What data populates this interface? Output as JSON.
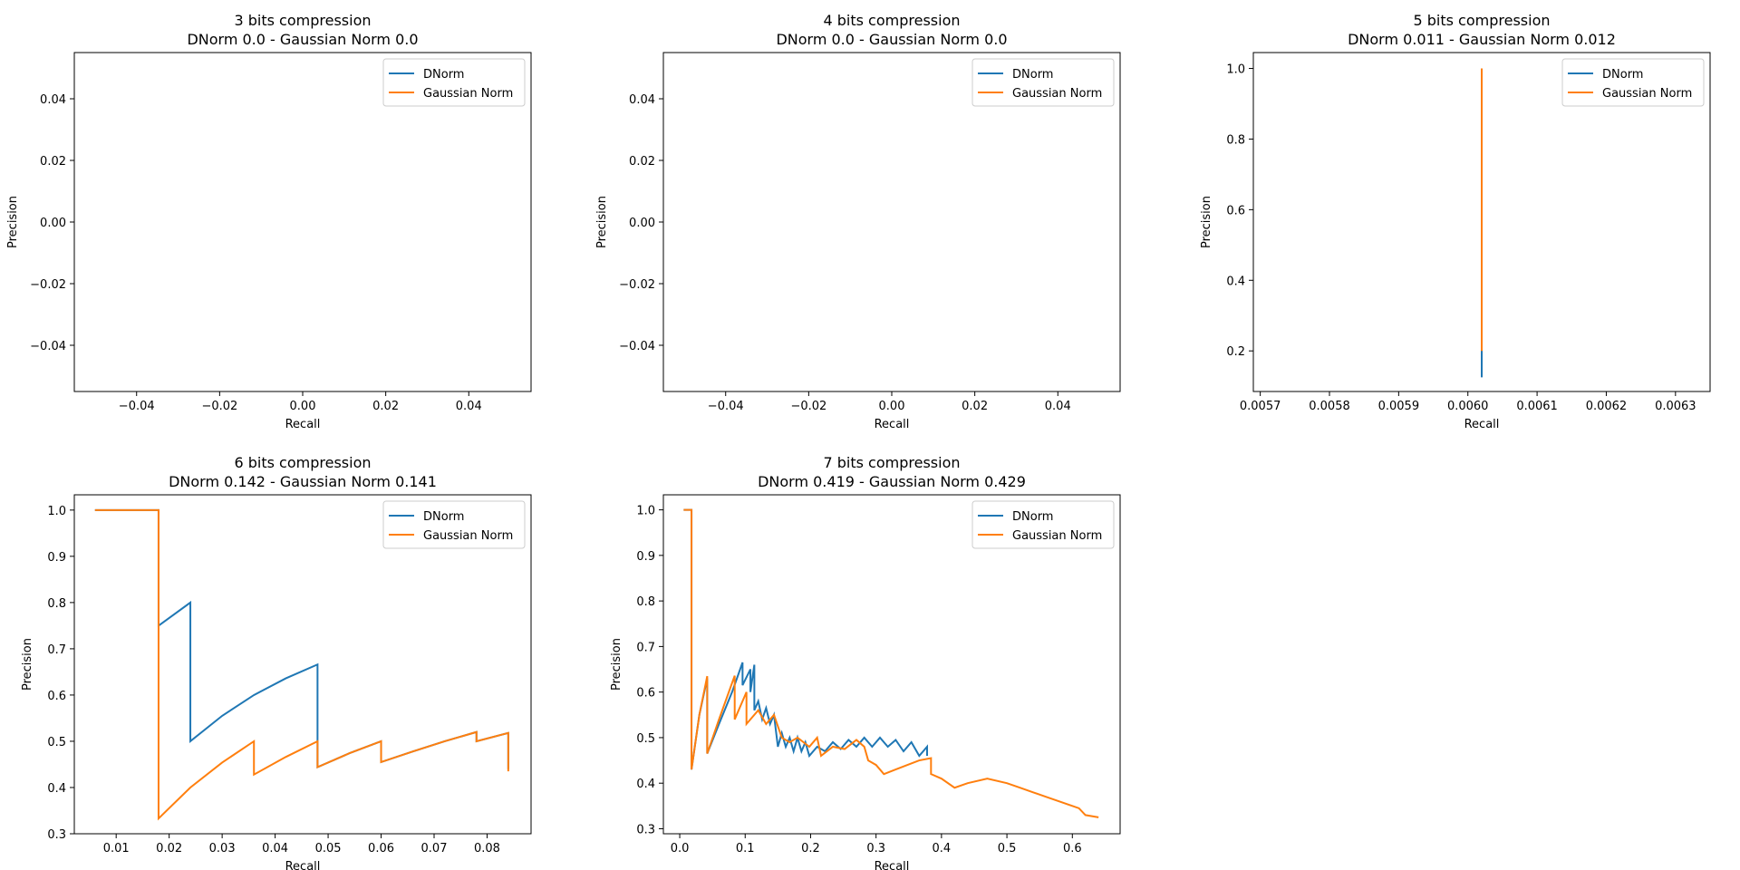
{
  "chart_data": [
    {
      "type": "line",
      "title": "3 bits compression",
      "subtitle": "DNorm 0.0 - Gaussian Norm 0.0",
      "xlabel": "Recall",
      "ylabel": "Precision",
      "xlim": [
        -0.055,
        0.055
      ],
      "ylim": [
        -0.055,
        0.055
      ],
      "xticks": [
        -0.04,
        -0.02,
        0.0,
        0.02,
        0.04
      ],
      "xtick_labels": [
        "−0.04",
        "−0.02",
        "0.00",
        "0.02",
        "0.04"
      ],
      "yticks": [
        -0.04,
        -0.02,
        0.0,
        0.02,
        0.04
      ],
      "ytick_labels": [
        "−0.04",
        "−0.02",
        "0.00",
        "0.02",
        "0.04"
      ],
      "legend": "top-right",
      "series": [
        {
          "name": "DNorm",
          "color": "#1f77b4",
          "points": []
        },
        {
          "name": "Gaussian Norm",
          "color": "#ff7f0e",
          "points": []
        }
      ]
    },
    {
      "type": "line",
      "title": "4 bits compression",
      "subtitle": "DNorm 0.0 - Gaussian Norm 0.0",
      "xlabel": "Recall",
      "ylabel": "Precision",
      "xlim": [
        -0.055,
        0.055
      ],
      "ylim": [
        -0.055,
        0.055
      ],
      "xticks": [
        -0.04,
        -0.02,
        0.0,
        0.02,
        0.04
      ],
      "xtick_labels": [
        "−0.04",
        "−0.02",
        "0.00",
        "0.02",
        "0.04"
      ],
      "yticks": [
        -0.04,
        -0.02,
        0.0,
        0.02,
        0.04
      ],
      "ytick_labels": [
        "−0.04",
        "−0.02",
        "0.00",
        "0.02",
        "0.04"
      ],
      "legend": "top-right",
      "series": [
        {
          "name": "DNorm",
          "color": "#1f77b4",
          "points": []
        },
        {
          "name": "Gaussian Norm",
          "color": "#ff7f0e",
          "points": []
        }
      ]
    },
    {
      "type": "line",
      "title": "5 bits compression",
      "subtitle": "DNorm 0.011 - Gaussian Norm 0.012",
      "xlabel": "Recall",
      "ylabel": "Precision",
      "xlim": [
        0.00569,
        0.00635
      ],
      "ylim": [
        0.085,
        1.045
      ],
      "xticks": [
        0.0057,
        0.0058,
        0.0059,
        0.006,
        0.0061,
        0.0062,
        0.0063
      ],
      "xtick_labels": [
        "0.0057",
        "0.0058",
        "0.0059",
        "0.0060",
        "0.0061",
        "0.0062",
        "0.0063"
      ],
      "yticks": [
        0.2,
        0.4,
        0.6,
        0.8,
        1.0
      ],
      "ytick_labels": [
        "0.2",
        "0.4",
        "0.6",
        "0.8",
        "1.0"
      ],
      "legend": "top-right",
      "series": [
        {
          "name": "DNorm",
          "color": "#1f77b4",
          "points": [
            [
              0.00602,
              1.0
            ],
            [
              0.00602,
              0.125
            ]
          ]
        },
        {
          "name": "Gaussian Norm",
          "color": "#ff7f0e",
          "points": [
            [
              0.00602,
              1.0
            ],
            [
              0.00602,
              0.2
            ]
          ]
        }
      ]
    },
    {
      "type": "line",
      "title": "6 bits compression",
      "subtitle": "DNorm 0.142 - Gaussian Norm 0.141",
      "xlabel": "Recall",
      "ylabel": "Precision",
      "xlim": [
        0.0021,
        0.0883
      ],
      "ylim": [
        0.3,
        1.033
      ],
      "xticks": [
        0.01,
        0.02,
        0.03,
        0.04,
        0.05,
        0.06,
        0.07,
        0.08
      ],
      "xtick_labels": [
        "0.01",
        "0.02",
        "0.03",
        "0.04",
        "0.05",
        "0.06",
        "0.07",
        "0.08"
      ],
      "yticks": [
        0.3,
        0.4,
        0.5,
        0.6,
        0.7,
        0.8,
        0.9,
        1.0
      ],
      "ytick_labels": [
        "0.3",
        "0.4",
        "0.5",
        "0.6",
        "0.7",
        "0.8",
        "0.9",
        "1.0"
      ],
      "legend": "top-right",
      "series": [
        {
          "name": "DNorm",
          "color": "#1f77b4",
          "points": [
            [
              0.006,
              1.0
            ],
            [
              0.012,
              1.0
            ],
            [
              0.018,
              1.0
            ],
            [
              0.018,
              0.75
            ],
            [
              0.024,
              0.8
            ],
            [
              0.024,
              0.5
            ],
            [
              0.03,
              0.555
            ],
            [
              0.036,
              0.6
            ],
            [
              0.042,
              0.636
            ],
            [
              0.048,
              0.666
            ],
            [
              0.048,
              0.444
            ],
            [
              0.054,
              0.474
            ],
            [
              0.06,
              0.5
            ],
            [
              0.06,
              0.455
            ],
            [
              0.066,
              0.478
            ],
            [
              0.072,
              0.5
            ],
            [
              0.078,
              0.52
            ],
            [
              0.078,
              0.5
            ],
            [
              0.084,
              0.518
            ],
            [
              0.084,
              0.44
            ]
          ]
        },
        {
          "name": "Gaussian Norm",
          "color": "#ff7f0e",
          "points": [
            [
              0.006,
              1.0
            ],
            [
              0.012,
              1.0
            ],
            [
              0.018,
              1.0
            ],
            [
              0.018,
              0.333
            ],
            [
              0.024,
              0.4
            ],
            [
              0.03,
              0.454
            ],
            [
              0.036,
              0.5
            ],
            [
              0.036,
              0.428
            ],
            [
              0.042,
              0.466
            ],
            [
              0.048,
              0.5
            ],
            [
              0.048,
              0.444
            ],
            [
              0.054,
              0.474
            ],
            [
              0.06,
              0.5
            ],
            [
              0.06,
              0.455
            ],
            [
              0.066,
              0.478
            ],
            [
              0.072,
              0.5
            ],
            [
              0.078,
              0.52
            ],
            [
              0.078,
              0.5
            ],
            [
              0.084,
              0.518
            ],
            [
              0.084,
              0.435
            ]
          ]
        }
      ]
    },
    {
      "type": "line",
      "title": "7 bits compression",
      "subtitle": "DNorm 0.419 - Gaussian Norm 0.429",
      "xlabel": "Recall",
      "ylabel": "Precision",
      "xlim": [
        -0.025,
        0.673
      ],
      "ylim": [
        0.289,
        1.033
      ],
      "xticks": [
        0.0,
        0.1,
        0.2,
        0.3,
        0.4,
        0.5,
        0.6
      ],
      "xtick_labels": [
        "0.0",
        "0.1",
        "0.2",
        "0.3",
        "0.4",
        "0.5",
        "0.6"
      ],
      "yticks": [
        0.3,
        0.4,
        0.5,
        0.6,
        0.7,
        0.8,
        0.9,
        1.0
      ],
      "ytick_labels": [
        "0.3",
        "0.4",
        "0.5",
        "0.6",
        "0.7",
        "0.8",
        "0.9",
        "1.0"
      ],
      "legend": "top-right",
      "series": [
        {
          "name": "DNorm",
          "color": "#1f77b4",
          "points": [
            [
              0.006,
              1.0
            ],
            [
              0.018,
              1.0
            ],
            [
              0.018,
              0.43
            ],
            [
              0.03,
              0.55
            ],
            [
              0.042,
              0.63
            ],
            [
              0.042,
              0.465
            ],
            [
              0.06,
              0.53
            ],
            [
              0.08,
              0.6
            ],
            [
              0.096,
              0.665
            ],
            [
              0.096,
              0.615
            ],
            [
              0.108,
              0.65
            ],
            [
              0.108,
              0.6
            ],
            [
              0.114,
              0.66
            ],
            [
              0.114,
              0.56
            ],
            [
              0.12,
              0.58
            ],
            [
              0.126,
              0.54
            ],
            [
              0.132,
              0.565
            ],
            [
              0.138,
              0.53
            ],
            [
              0.144,
              0.55
            ],
            [
              0.15,
              0.48
            ],
            [
              0.156,
              0.51
            ],
            [
              0.162,
              0.48
            ],
            [
              0.168,
              0.5
            ],
            [
              0.174,
              0.47
            ],
            [
              0.18,
              0.5
            ],
            [
              0.186,
              0.47
            ],
            [
              0.192,
              0.49
            ],
            [
              0.198,
              0.46
            ],
            [
              0.21,
              0.48
            ],
            [
              0.222,
              0.47
            ],
            [
              0.234,
              0.49
            ],
            [
              0.246,
              0.475
            ],
            [
              0.258,
              0.495
            ],
            [
              0.27,
              0.48
            ],
            [
              0.282,
              0.5
            ],
            [
              0.294,
              0.48
            ],
            [
              0.306,
              0.5
            ],
            [
              0.318,
              0.48
            ],
            [
              0.33,
              0.495
            ],
            [
              0.342,
              0.47
            ],
            [
              0.354,
              0.49
            ],
            [
              0.366,
              0.46
            ],
            [
              0.378,
              0.48
            ],
            [
              0.378,
              0.46
            ]
          ]
        },
        {
          "name": "Gaussian Norm",
          "color": "#ff7f0e",
          "points": [
            [
              0.006,
              1.0
            ],
            [
              0.018,
              1.0
            ],
            [
              0.018,
              0.43
            ],
            [
              0.03,
              0.55
            ],
            [
              0.042,
              0.635
            ],
            [
              0.042,
              0.465
            ],
            [
              0.06,
              0.54
            ],
            [
              0.084,
              0.636
            ],
            [
              0.084,
              0.54
            ],
            [
              0.102,
              0.6
            ],
            [
              0.102,
              0.53
            ],
            [
              0.12,
              0.56
            ],
            [
              0.132,
              0.53
            ],
            [
              0.144,
              0.55
            ],
            [
              0.156,
              0.5
            ],
            [
              0.168,
              0.49
            ],
            [
              0.18,
              0.5
            ],
            [
              0.198,
              0.48
            ],
            [
              0.21,
              0.5
            ],
            [
              0.216,
              0.46
            ],
            [
              0.234,
              0.48
            ],
            [
              0.252,
              0.475
            ],
            [
              0.27,
              0.495
            ],
            [
              0.282,
              0.48
            ],
            [
              0.288,
              0.45
            ],
            [
              0.3,
              0.44
            ],
            [
              0.312,
              0.42
            ],
            [
              0.33,
              0.43
            ],
            [
              0.348,
              0.44
            ],
            [
              0.366,
              0.45
            ],
            [
              0.384,
              0.455
            ],
            [
              0.384,
              0.42
            ],
            [
              0.4,
              0.41
            ],
            [
              0.42,
              0.39
            ],
            [
              0.44,
              0.4
            ],
            [
              0.47,
              0.41
            ],
            [
              0.5,
              0.4
            ],
            [
              0.52,
              0.39
            ],
            [
              0.54,
              0.38
            ],
            [
              0.56,
              0.37
            ],
            [
              0.58,
              0.36
            ],
            [
              0.6,
              0.35
            ],
            [
              0.61,
              0.345
            ],
            [
              0.62,
              0.33
            ],
            [
              0.64,
              0.325
            ]
          ]
        }
      ]
    }
  ]
}
